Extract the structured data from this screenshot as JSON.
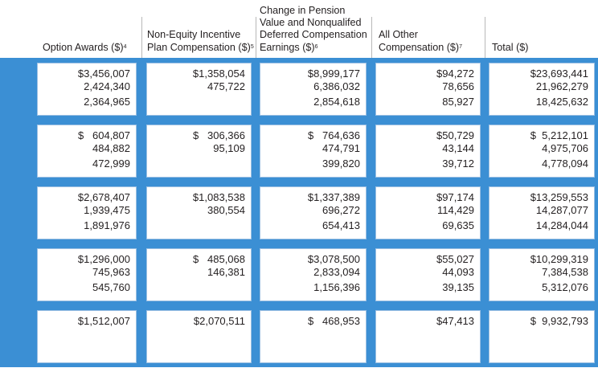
{
  "columns": [
    {
      "label": "Option Awards ($)",
      "note": "4"
    },
    {
      "label_lines": [
        "Non-Equity Incentive",
        "Plan Compensation ($)"
      ],
      "note": "5"
    },
    {
      "label_lines": [
        "Change in Pension",
        "Value and Nonqualifed",
        "Deferred Compensation",
        "Earnings ($)"
      ],
      "note": "6"
    },
    {
      "label_lines": [
        "All Other",
        "Compensation ($)"
      ],
      "note": "7"
    },
    {
      "label": "Total ($)"
    }
  ],
  "groups": [
    {
      "option_awards": [
        "$3,456,007",
        "2,424,340",
        "2,364,965"
      ],
      "non_equity": [
        "$1,358,054",
        "475,722"
      ],
      "pension": [
        "$8,999,177",
        "6,386,032",
        "2,854,618"
      ],
      "all_other": [
        "$94,272",
        "78,656",
        "85,927"
      ],
      "total": [
        "$23,693,441",
        "21,962,279",
        "18,425,632"
      ]
    },
    {
      "option_awards": [
        "$   604,807",
        "484,882",
        "472,999"
      ],
      "non_equity": [
        "$   306,366",
        "95,109"
      ],
      "pension": [
        "$   764,636",
        "474,791",
        "399,820"
      ],
      "all_other": [
        "$50,729",
        "43,144",
        "39,712"
      ],
      "total": [
        "$  5,212,101",
        "4,975,706",
        "4,778,094"
      ]
    },
    {
      "option_awards": [
        "$2,678,407",
        "1,939,475",
        "1,891,976"
      ],
      "non_equity": [
        "$1,083,538",
        "380,554"
      ],
      "pension": [
        "$1,337,389",
        "696,272",
        "654,413"
      ],
      "all_other": [
        "$97,174",
        "114,429",
        "69,635"
      ],
      "total": [
        "$13,259,553",
        "14,287,077",
        "14,284,044"
      ]
    },
    {
      "option_awards": [
        "$1,296,000",
        "745,963",
        "545,760"
      ],
      "non_equity": [
        "$   485,068",
        "146,381"
      ],
      "pension": [
        "$3,078,500",
        "2,833,094",
        "1,156,396"
      ],
      "all_other": [
        "$55,027",
        "44,093",
        "39,135"
      ],
      "total": [
        "$10,299,319",
        "7,384,538",
        "5,312,076"
      ]
    },
    {
      "option_awards": [
        "$1,512,007"
      ],
      "non_equity": [
        "$2,070,511"
      ],
      "pension": [
        "$   468,953"
      ],
      "all_other": [
        "$47,413"
      ],
      "total": [
        "$  9,932,793"
      ]
    }
  ],
  "colors": {
    "band": "#3b8fd4",
    "box_border": "#9bbfe2",
    "text": "#231f20"
  }
}
